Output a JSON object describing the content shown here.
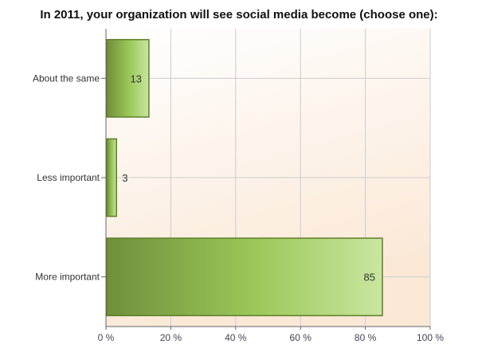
{
  "chart_data": {
    "type": "bar",
    "orientation": "horizontal",
    "title": "In  2011, your organization will see social media become (choose one):",
    "categories": [
      "About the same",
      "Less important",
      "More important"
    ],
    "values": [
      13,
      3,
      85
    ],
    "value_labels": [
      "13",
      "3",
      "85"
    ],
    "xlim": [
      0,
      100
    ],
    "x_ticks": [
      0,
      20,
      40,
      60,
      80,
      100
    ],
    "x_tick_labels": [
      "0 %",
      "20 %",
      "40 %",
      "60 %",
      "80 %",
      "100 %"
    ],
    "xlabel": "",
    "ylabel": "",
    "grid": true,
    "legend": "none",
    "colors": {
      "bar_dark": "#6f8f3a",
      "bar_mid": "#9cc95a",
      "bar_light": "#c9e6a0",
      "bar_stroke": "#5f7f2a",
      "plot_bg_top": "#ffffff",
      "plot_bg_bottom": "#fbe8d6",
      "grid": "#cccccc",
      "axis": "#666666"
    }
  }
}
